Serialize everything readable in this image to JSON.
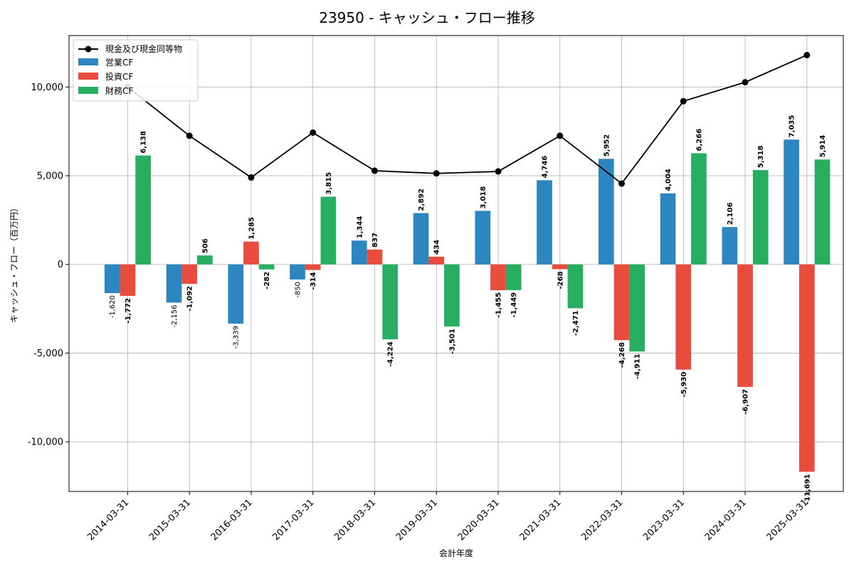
{
  "chart_data": {
    "type": "bar",
    "title": "23950 - キャッシュ・フロー推移",
    "xlabel": "会計年度",
    "ylabel": "キャッシュ・フロー（百万円）",
    "categories": [
      "2014-03-31",
      "2015-03-31",
      "2016-03-31",
      "2017-03-31",
      "2018-03-31",
      "2019-03-31",
      "2020-03-31",
      "2021-03-31",
      "2022-03-31",
      "2023-03-31",
      "2024-03-31",
      "2025-03-31"
    ],
    "ylim": [
      -12800,
      12900
    ],
    "yticks": [
      -10000,
      -5000,
      0,
      5000,
      10000
    ],
    "ytick_labels": [
      "-10,000",
      "-5,000",
      "0",
      "5,000",
      "10,000"
    ],
    "grid": true,
    "legend_position": "top-left",
    "series": [
      {
        "name": "営業CF",
        "kind": "bar",
        "color": "#2e86c1",
        "values": [
          -1620,
          -2156,
          -3339,
          -850,
          1344,
          2892,
          3018,
          4746,
          5952,
          4004,
          2106,
          7035
        ],
        "labels": [
          "-1,620",
          "-2,156",
          "-3,339",
          "-850",
          "1,344",
          "2,892",
          "3,018",
          "4,746",
          "5,952",
          "4,004",
          "2,106",
          "7,035"
        ]
      },
      {
        "name": "投資CF",
        "kind": "bar",
        "color": "#e74c3c",
        "values": [
          -1772,
          -1092,
          1285,
          -314,
          837,
          434,
          -1455,
          -268,
          -4268,
          -5930,
          -6907,
          -11691
        ],
        "labels": [
          "-1,772",
          "-1,092",
          "1,285",
          "-314",
          "837",
          "434",
          "-1,455",
          "-268",
          "-4,268",
          "-5,930",
          "-6,907",
          "-11,691"
        ]
      },
      {
        "name": "財務CF",
        "kind": "bar",
        "color": "#27ae60",
        "values": [
          6138,
          506,
          -282,
          3815,
          -4224,
          -3501,
          -1449,
          -2471,
          -4911,
          6266,
          5318,
          5914
        ],
        "labels": [
          "6,138",
          "506",
          "-282",
          "3,815",
          "-4,224",
          "-3,501",
          "-1,449",
          "-2,471",
          "-4,911",
          "6,266",
          "5,318",
          "5,914"
        ]
      },
      {
        "name": "現金及び現金同等物",
        "kind": "line",
        "color": "#000000",
        "values": [
          10000,
          7250,
          4900,
          7430,
          5280,
          5130,
          5240,
          7250,
          4560,
          9200,
          10270,
          11800
        ]
      }
    ]
  }
}
